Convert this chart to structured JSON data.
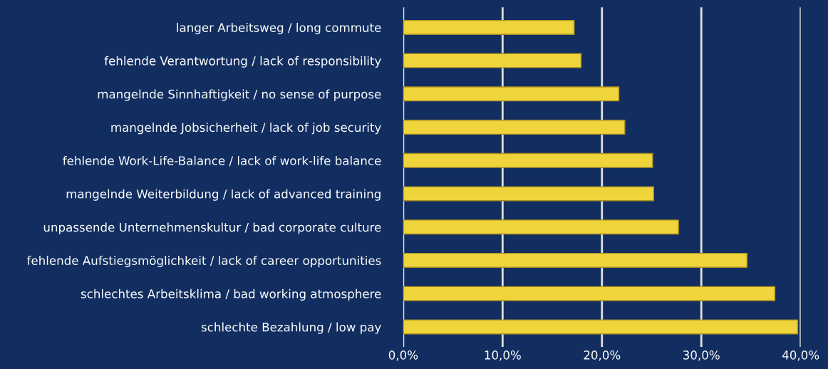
{
  "chart_data": {
    "type": "bar",
    "orientation": "horizontal",
    "categories": [
      "langer Arbeitsweg / long commute",
      "fehlende Verantwortung / lack of responsibility",
      "mangelnde Sinnhaftigkeit / no sense of purpose",
      "mangelnde Jobsicherheit / lack of job security",
      "fehlende Work-Life-Balance / lack of work-life balance",
      "mangelnde Weiterbildung / lack of advanced training",
      "unpassende Unternehmenskultur / bad corporate culture",
      "fehlende Aufstiegsmöglichkeit / lack of career opportunities",
      "schlechtes Arbeitsklima / bad working atmosphere",
      "schlechte Bezahlung / low pay"
    ],
    "values": [
      17.2,
      17.9,
      21.7,
      22.3,
      25.1,
      25.2,
      27.7,
      34.6,
      37.4,
      39.7
    ],
    "color": "#f0d43c",
    "xlim": [
      0,
      40
    ],
    "xticks": [
      {
        "value": 0,
        "label": "0,0%"
      },
      {
        "value": 10,
        "label": "10,0%"
      },
      {
        "value": 20,
        "label": "20,0%"
      },
      {
        "value": 30,
        "label": "30,0%"
      },
      {
        "value": 40,
        "label": "40,0%"
      }
    ],
    "grid": "x"
  }
}
